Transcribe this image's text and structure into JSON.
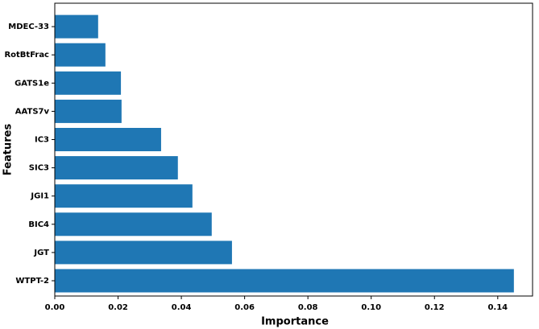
{
  "chart_data": {
    "type": "barh",
    "xlabel": "Importance",
    "ylabel": "Features",
    "categories": [
      "WTPT-2",
      "JGT",
      "BIC4",
      "JGI1",
      "SIC3",
      "IC3",
      "AATS7v",
      "GATS1e",
      "RotBtFrac",
      "MDEC-33"
    ],
    "values": [
      0.1451,
      0.056,
      0.0496,
      0.0435,
      0.0389,
      0.0336,
      0.0211,
      0.0209,
      0.016,
      0.0137
    ],
    "color": "#1f77b4",
    "xlim": [
      0,
      0.151
    ],
    "xticks": [
      {
        "value": 0,
        "label": "0.00"
      },
      {
        "value": 0.02,
        "label": "0.02"
      },
      {
        "value": 0.04,
        "label": "0.04"
      },
      {
        "value": 0.06,
        "label": "0.06"
      },
      {
        "value": 0.08,
        "label": "0.08"
      },
      {
        "value": 0.1,
        "label": "0.10"
      },
      {
        "value": 0.12,
        "label": "0.12"
      },
      {
        "value": 0.14,
        "label": "0.14"
      }
    ]
  }
}
